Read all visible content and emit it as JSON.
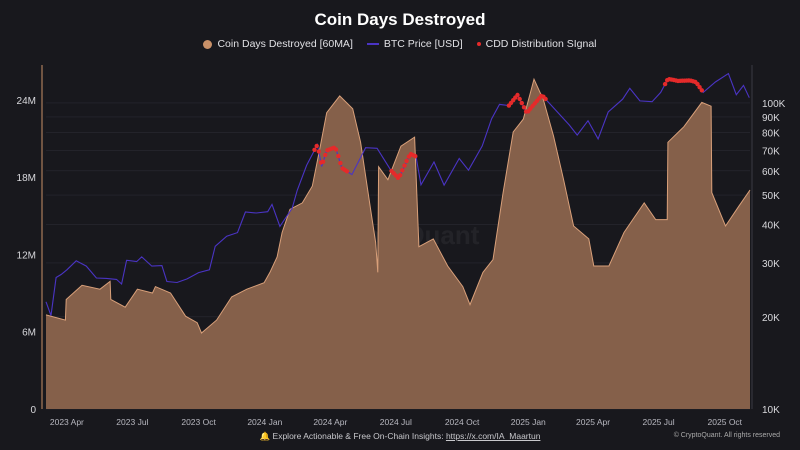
{
  "chart_data": {
    "type": "area+line",
    "title": "Coin Days Destroyed",
    "legend_position": "top",
    "grid": true,
    "colors": {
      "background": "#18181d",
      "cdd_fill": "#85604a",
      "cdd_edge": "#d9a07a",
      "btc": "#4a34c4",
      "signal": "#e52a2a"
    },
    "x_ticks": [
      "2023 Apr",
      "2023 Jul",
      "2023 Oct",
      "2024 Jan",
      "2024 Apr",
      "2024 Jul",
      "2024 Oct",
      "2025 Jan",
      "2025 Apr",
      "2025 Jul",
      "2025 Oct"
    ],
    "x_tick_dates": [
      "2023-04-01",
      "2023-07-01",
      "2023-10-01",
      "2024-01-01",
      "2024-04-01",
      "2024-07-01",
      "2024-10-01",
      "2025-01-01",
      "2025-04-01",
      "2025-07-01",
      "2025-10-01"
    ],
    "xlim": [
      "2023-03-03",
      "2025-11-05"
    ],
    "y_left": {
      "ticks": [
        0,
        6,
        12,
        18,
        24
      ],
      "tick_labels": [
        "0",
        "6M",
        "12M",
        "18M",
        "24M"
      ],
      "range": [
        0,
        26.7
      ],
      "unit": "M"
    },
    "y_right": {
      "scale": "log",
      "ticks": [
        10,
        20,
        30,
        40,
        50,
        60,
        70,
        80,
        90,
        100
      ],
      "tick_labels": [
        "10K",
        "20K",
        "30K",
        "40K",
        "50K",
        "60K",
        "70K",
        "80K",
        "90K",
        "100K"
      ],
      "range": [
        10,
        133
      ],
      "unit": "K"
    },
    "series": [
      {
        "name": "Coin Days Destroyed [60MA]",
        "type": "area",
        "points": [
          [
            "2023-03-03",
            7.3
          ],
          [
            "2023-03-30",
            6.9
          ],
          [
            "2023-03-31",
            8.5
          ],
          [
            "2023-04-22",
            9.6
          ],
          [
            "2023-05-17",
            9.3
          ],
          [
            "2023-05-31",
            9.9
          ],
          [
            "2023-06-01",
            8.5
          ],
          [
            "2023-06-21",
            7.9
          ],
          [
            "2023-07-08",
            9.3
          ],
          [
            "2023-07-29",
            9.0
          ],
          [
            "2023-08-02",
            9.5
          ],
          [
            "2023-08-23",
            9.0
          ],
          [
            "2023-09-13",
            7.2
          ],
          [
            "2023-09-29",
            6.7
          ],
          [
            "2023-10-05",
            5.9
          ],
          [
            "2023-10-26",
            6.9
          ],
          [
            "2023-11-16",
            8.7
          ],
          [
            "2023-12-07",
            9.3
          ],
          [
            "2023-12-31",
            9.8
          ],
          [
            "2024-01-08",
            10.6
          ],
          [
            "2024-01-18",
            11.8
          ],
          [
            "2024-01-25",
            13.7
          ],
          [
            "2024-02-05",
            15.5
          ],
          [
            "2024-02-22",
            16.0
          ],
          [
            "2024-03-07",
            17.3
          ],
          [
            "2024-03-18",
            20.4
          ],
          [
            "2024-03-27",
            23.0
          ],
          [
            "2024-04-14",
            24.3
          ],
          [
            "2024-05-02",
            23.3
          ],
          [
            "2024-05-13",
            20.7
          ],
          [
            "2024-05-27",
            15.5
          ],
          [
            "2024-06-03",
            12.9
          ],
          [
            "2024-06-06",
            10.6
          ],
          [
            "2024-06-07",
            18.8
          ],
          [
            "2024-06-20",
            17.8
          ],
          [
            "2024-07-08",
            20.4
          ],
          [
            "2024-07-27",
            21.1
          ],
          [
            "2024-08-02",
            12.6
          ],
          [
            "2024-08-22",
            13.2
          ],
          [
            "2024-09-11",
            11.1
          ],
          [
            "2024-10-02",
            9.5
          ],
          [
            "2024-10-12",
            8.1
          ],
          [
            "2024-10-30",
            10.6
          ],
          [
            "2024-11-13",
            11.6
          ],
          [
            "2024-11-27",
            16.8
          ],
          [
            "2024-12-11",
            21.5
          ],
          [
            "2024-12-25",
            22.5
          ],
          [
            "2025-01-09",
            25.6
          ],
          [
            "2025-01-22",
            24.0
          ],
          [
            "2025-02-05",
            21.2
          ],
          [
            "2025-02-19",
            17.8
          ],
          [
            "2025-03-05",
            14.2
          ],
          [
            "2025-03-26",
            13.2
          ],
          [
            "2025-04-02",
            11.1
          ],
          [
            "2025-04-23",
            11.1
          ],
          [
            "2025-05-14",
            13.7
          ],
          [
            "2025-06-11",
            16.0
          ],
          [
            "2025-06-27",
            14.7
          ],
          [
            "2025-07-13",
            14.7
          ],
          [
            "2025-07-14",
            20.7
          ],
          [
            "2025-08-05",
            21.9
          ],
          [
            "2025-08-30",
            23.8
          ],
          [
            "2025-09-12",
            23.5
          ],
          [
            "2025-09-13",
            16.8
          ],
          [
            "2025-10-02",
            14.2
          ],
          [
            "2025-10-20",
            15.7
          ],
          [
            "2025-11-05",
            17.0
          ]
        ]
      },
      {
        "name": "BTC Price [USD]",
        "type": "line",
        "axis": "right",
        "points": [
          [
            "2023-03-03",
            22.4
          ],
          [
            "2023-03-10",
            20.2
          ],
          [
            "2023-03-17",
            26.9
          ],
          [
            "2023-03-24",
            27.5
          ],
          [
            "2023-04-01",
            28.5
          ],
          [
            "2023-04-14",
            30.5
          ],
          [
            "2023-04-28",
            29.3
          ],
          [
            "2023-05-12",
            26.8
          ],
          [
            "2023-05-26",
            26.7
          ],
          [
            "2023-06-09",
            26.5
          ],
          [
            "2023-06-16",
            25.6
          ],
          [
            "2023-06-23",
            30.6
          ],
          [
            "2023-07-07",
            30.3
          ],
          [
            "2023-07-14",
            31.4
          ],
          [
            "2023-07-28",
            29.3
          ],
          [
            "2023-08-11",
            29.4
          ],
          [
            "2023-08-18",
            26.1
          ],
          [
            "2023-09-01",
            25.9
          ],
          [
            "2023-09-15",
            26.6
          ],
          [
            "2023-10-01",
            27.9
          ],
          [
            "2023-10-16",
            28.5
          ],
          [
            "2023-10-24",
            34.0
          ],
          [
            "2023-11-09",
            36.7
          ],
          [
            "2023-11-24",
            37.7
          ],
          [
            "2023-12-05",
            44.0
          ],
          [
            "2023-12-20",
            43.7
          ],
          [
            "2024-01-05",
            44.1
          ],
          [
            "2024-01-11",
            46.6
          ],
          [
            "2024-01-22",
            39.5
          ],
          [
            "2024-02-08",
            45.3
          ],
          [
            "2024-02-15",
            51.8
          ],
          [
            "2024-02-28",
            62.5
          ],
          [
            "2024-03-14",
            73.1
          ],
          [
            "2024-03-20",
            62.0
          ],
          [
            "2024-03-27",
            69.9
          ],
          [
            "2024-04-08",
            71.6
          ],
          [
            "2024-04-17",
            61.3
          ],
          [
            "2024-05-01",
            58.3
          ],
          [
            "2024-05-20",
            71.4
          ],
          [
            "2024-06-05",
            71.1
          ],
          [
            "2024-06-24",
            60.3
          ],
          [
            "2024-07-05",
            56.6
          ],
          [
            "2024-07-21",
            68.2
          ],
          [
            "2024-07-29",
            66.8
          ],
          [
            "2024-08-05",
            54.0
          ],
          [
            "2024-08-23",
            64.1
          ],
          [
            "2024-09-06",
            53.9
          ],
          [
            "2024-09-27",
            65.8
          ],
          [
            "2024-10-10",
            60.3
          ],
          [
            "2024-10-29",
            72.3
          ],
          [
            "2024-11-11",
            88.7
          ],
          [
            "2024-11-22",
            98.9
          ],
          [
            "2024-12-05",
            98.0
          ],
          [
            "2024-12-17",
            106.1
          ],
          [
            "2024-12-30",
            92.6
          ],
          [
            "2025-01-20",
            106.0
          ],
          [
            "2025-02-03",
            97.6
          ],
          [
            "2025-02-27",
            84.7
          ],
          [
            "2025-03-10",
            78.5
          ],
          [
            "2025-03-25",
            87.5
          ],
          [
            "2025-04-08",
            76.3
          ],
          [
            "2025-04-22",
            93.4
          ],
          [
            "2025-05-12",
            102.8
          ],
          [
            "2025-05-22",
            111.6
          ],
          [
            "2025-06-05",
            101.5
          ],
          [
            "2025-06-22",
            100.9
          ],
          [
            "2025-07-04",
            108.2
          ],
          [
            "2025-07-14",
            119.8
          ],
          [
            "2025-07-28",
            118.0
          ],
          [
            "2025-08-14",
            118.4
          ],
          [
            "2025-08-22",
            116.9
          ],
          [
            "2025-09-01",
            108.2
          ],
          [
            "2025-09-18",
            117.0
          ],
          [
            "2025-10-06",
            124.7
          ],
          [
            "2025-10-17",
            106.4
          ],
          [
            "2025-10-27",
            114.1
          ],
          [
            "2025-11-04",
            104.0
          ]
        ]
      },
      {
        "name": "CDD Distribution SIgnal",
        "type": "scatter",
        "periods": [
          [
            "2024-03-10",
            "2024-04-25"
          ],
          [
            "2024-06-25",
            "2024-07-28"
          ],
          [
            "2024-12-05",
            "2025-01-25"
          ],
          [
            "2025-07-10",
            "2025-08-30"
          ]
        ]
      }
    ]
  },
  "legend": {
    "cdd": "Coin Days Destroyed [60MA]",
    "btc": "BTC Price [USD]",
    "signal": "CDD Distribution SIgnal"
  },
  "watermark": "CryptoQuant",
  "footer": {
    "text": "Explore Actionable & Free On-Chain Insights:",
    "link": "https://x.com/IA_Maartun",
    "copyright": "© CryptoQuant. All rights reserved"
  }
}
